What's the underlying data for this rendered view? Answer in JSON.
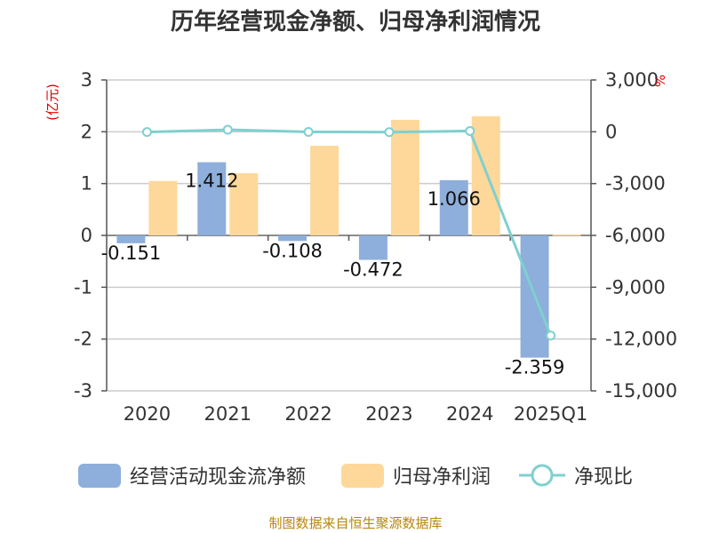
{
  "chart_data": {
    "type": "bar",
    "title": "历年经营现金净额、归母净利润情况",
    "categories": [
      "2020",
      "2021",
      "2022",
      "2023",
      "2024",
      "2025Q1"
    ],
    "left_axis": {
      "unit": "(亿元)",
      "ylim": [
        -3,
        3
      ],
      "ticks": [
        3,
        2,
        1,
        0,
        -1,
        -2,
        -3
      ],
      "tick_labels": [
        "3",
        "2",
        "1",
        "0",
        "-1",
        "-2",
        "-3"
      ]
    },
    "right_axis": {
      "unit": "%",
      "ylim": [
        -15000,
        3000
      ],
      "ticks": [
        3000,
        0,
        -3000,
        -6000,
        -9000,
        -12000,
        -15000
      ],
      "tick_labels": [
        "3,000",
        "0",
        "-3,000",
        "-6,000",
        "-9,000",
        "-12,000",
        "-15,000"
      ]
    },
    "series": [
      {
        "name": "经营活动现金流净额",
        "type": "bar",
        "axis": "left",
        "color": "#8eaedb",
        "values": [
          -0.151,
          1.412,
          -0.108,
          -0.472,
          1.066,
          -2.359
        ],
        "labels": [
          "-0.151",
          "1.412",
          "-0.108",
          "-0.472",
          "1.066",
          "-2.359"
        ]
      },
      {
        "name": "归母净利润",
        "type": "bar",
        "axis": "left",
        "color": "#fdd89a",
        "values": [
          1.05,
          1.2,
          1.73,
          2.23,
          2.3,
          0.02
        ]
      },
      {
        "name": "净现比",
        "type": "line",
        "axis": "right",
        "color": "#7fd0d0",
        "values": [
          -14,
          118,
          -6,
          -21,
          46,
          -11800
        ]
      }
    ],
    "source": "制图数据来自恒生聚源数据库"
  }
}
